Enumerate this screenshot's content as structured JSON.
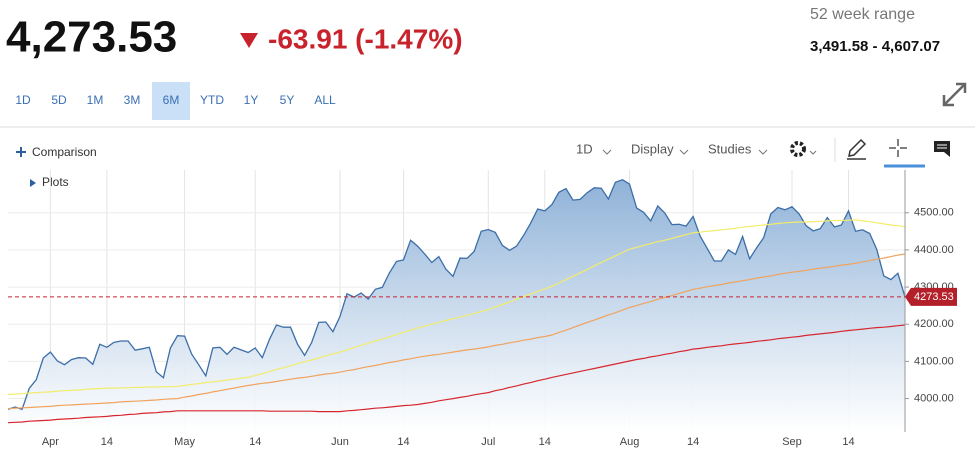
{
  "quote": {
    "last": "4,273.53",
    "change": "-63.91 (-1.47%)",
    "range_label": "52 week range",
    "range": "3,491.58 - 4,607.07"
  },
  "toolbar": {
    "ranges": [
      "1D",
      "5D",
      "1M",
      "3M",
      "6M",
      "YTD",
      "1Y",
      "5Y",
      "ALL"
    ],
    "selected_range_index": 4,
    "comparison": "Comparison",
    "interval": "1D",
    "display": "Display",
    "studies": "Studies",
    "plots": "Plots"
  },
  "chart_data": {
    "type": "line",
    "categories": [
      null,
      null,
      null,
      null,
      null,
      null,
      "Apr",
      null,
      null,
      null,
      null,
      null,
      null,
      null,
      "14",
      null,
      null,
      null,
      null,
      null,
      null,
      null,
      null,
      null,
      null,
      "May",
      null,
      null,
      null,
      null,
      null,
      null,
      null,
      null,
      null,
      "14",
      null,
      null,
      null,
      null,
      null,
      null,
      null,
      null,
      null,
      null,
      null,
      "Jun",
      null,
      null,
      null,
      null,
      null,
      null,
      null,
      null,
      "14",
      null,
      null,
      null,
      null,
      null,
      null,
      null,
      null,
      null,
      null,
      null,
      "Jul",
      null,
      null,
      null,
      null,
      null,
      null,
      null,
      "14",
      null,
      null,
      null,
      null,
      null,
      null,
      null,
      null,
      null,
      null,
      null,
      "Aug",
      null,
      null,
      null,
      null,
      null,
      null,
      null,
      null,
      "14",
      null,
      null,
      null,
      null,
      null,
      null,
      null,
      null,
      null,
      null,
      null,
      null,
      null,
      "Sep",
      null,
      null,
      null,
      null,
      null,
      null,
      null,
      "14",
      null,
      null,
      null,
      null,
      null,
      null,
      null,
      null
    ],
    "series": [
      {
        "color": "#3c6ea8",
        "area": true,
        "values": [
          3971,
          3977,
          3971,
          4027,
          4051,
          4109,
          4125,
          4101,
          4091,
          4105,
          4110,
          4109,
          4092,
          4146,
          4138,
          4151,
          4155,
          4155,
          4130,
          4134,
          4138,
          4072,
          4056,
          4136,
          4169,
          4168,
          4120,
          4091,
          4061,
          4136,
          4138,
          4119,
          4138,
          4131,
          4124,
          4136,
          4110,
          4158,
          4198,
          4192,
          4192,
          4146,
          4116,
          4151,
          4205,
          4206,
          4180,
          4221,
          4282,
          4273,
          4284,
          4268,
          4294,
          4299,
          4338,
          4369,
          4373,
          4426,
          4410,
          4389,
          4366,
          4382,
          4348,
          4329,
          4378,
          4377,
          4396,
          4450,
          4455,
          4447,
          4412,
          4399,
          4410,
          4439,
          4472,
          4510,
          4505,
          4522,
          4555,
          4565,
          4534,
          4536,
          4554,
          4567,
          4566,
          4537,
          4582,
          4589,
          4577,
          4513,
          4501,
          4478,
          4518,
          4499,
          4468,
          4469,
          4464,
          4490,
          4437,
          4404,
          4370,
          4370,
          4400,
          4388,
          4436,
          4376,
          4406,
          4433,
          4497,
          4514,
          4508,
          4516,
          4497,
          4465,
          4451,
          4457,
          4487,
          4462,
          4467,
          4505,
          4450,
          4454,
          4444,
          4402,
          4330,
          4320,
          4337,
          4273.53
        ]
      },
      {
        "color": "#f2ec6a",
        "values": [
          4011,
          4012,
          4013,
          4015,
          4016,
          4017,
          4018,
          4020,
          4021,
          4022,
          4023,
          4025,
          4026,
          4027,
          4028,
          4028,
          4029,
          4029,
          4030,
          4030,
          4031,
          4031,
          4032,
          4032,
          4033,
          4035,
          4038,
          4040,
          4043,
          4045,
          4047,
          4050,
          4052,
          4055,
          4057,
          4062,
          4067,
          4073,
          4078,
          4083,
          4088,
          4094,
          4099,
          4104,
          4109,
          4115,
          4120,
          4125,
          4131,
          4137,
          4143,
          4149,
          4155,
          4160,
          4166,
          4172,
          4178,
          4184,
          4190,
          4195,
          4200,
          4205,
          4210,
          4215,
          4219,
          4224,
          4229,
          4234,
          4239,
          4246,
          4253,
          4260,
          4267,
          4274,
          4281,
          4288,
          4295,
          4302,
          4311,
          4320,
          4329,
          4338,
          4347,
          4357,
          4366,
          4375,
          4384,
          4393,
          4402,
          4407,
          4412,
          4417,
          4422,
          4426,
          4431,
          4436,
          4441,
          4446,
          4448,
          4450,
          4452,
          4454,
          4456,
          4458,
          4461,
          4463,
          4465,
          4467,
          4469,
          4471,
          4473,
          4474,
          4475,
          4475,
          4476,
          4477,
          4478,
          4479,
          4479,
          4480,
          4481,
          4478,
          4476,
          4473,
          4470,
          4467,
          4465,
          4462
        ]
      },
      {
        "color": "#f0a35e",
        "values": [
          3973,
          3974,
          3975,
          3976,
          3977,
          3978,
          3979,
          3981,
          3982,
          3983,
          3984,
          3985,
          3986,
          3987,
          3988,
          3989,
          3991,
          3992,
          3993,
          3994,
          3995,
          3996,
          3998,
          3999,
          4000,
          4004,
          4007,
          4011,
          4014,
          4018,
          4021,
          4025,
          4028,
          4032,
          4035,
          4038,
          4041,
          4043,
          4046,
          4049,
          4052,
          4055,
          4057,
          4060,
          4063,
          4066,
          4068,
          4071,
          4075,
          4078,
          4082,
          4086,
          4089,
          4093,
          4097,
          4100,
          4104,
          4107,
          4111,
          4114,
          4117,
          4119,
          4122,
          4125,
          4128,
          4131,
          4133,
          4136,
          4139,
          4143,
          4146,
          4150,
          4153,
          4157,
          4160,
          4164,
          4167,
          4171,
          4178,
          4184,
          4191,
          4198,
          4205,
          4211,
          4218,
          4225,
          4231,
          4238,
          4245,
          4250,
          4256,
          4261,
          4267,
          4272,
          4277,
          4283,
          4288,
          4294,
          4297,
          4301,
          4304,
          4307,
          4311,
          4314,
          4317,
          4320,
          4324,
          4327,
          4330,
          4334,
          4337,
          4340,
          4342,
          4345,
          4348,
          4351,
          4353,
          4356,
          4359,
          4361,
          4364,
          4368,
          4371,
          4375,
          4378,
          4382,
          4386,
          4389
        ]
      },
      {
        "color": "#d7262e",
        "values": [
          3935,
          3936,
          3937,
          3939,
          3940,
          3941,
          3942,
          3944,
          3945,
          3946,
          3947,
          3949,
          3950,
          3951,
          3952,
          3954,
          3955,
          3957,
          3958,
          3960,
          3961,
          3962,
          3964,
          3965,
          3967,
          3967,
          3967,
          3967,
          3967,
          3967,
          3967,
          3967,
          3967,
          3967,
          3967,
          3967,
          3967,
          3966,
          3966,
          3966,
          3966,
          3966,
          3966,
          3966,
          3965,
          3965,
          3965,
          3965,
          3967,
          3968,
          3970,
          3972,
          3974,
          3975,
          3977,
          3979,
          3981,
          3982,
          3984,
          3987,
          3990,
          3994,
          3997,
          4000,
          4003,
          4006,
          4010,
          4013,
          4016,
          4021,
          4025,
          4030,
          4034,
          4039,
          4043,
          4048,
          4052,
          4057,
          4061,
          4065,
          4069,
          4073,
          4077,
          4081,
          4085,
          4089,
          4093,
          4097,
          4101,
          4105,
          4108,
          4112,
          4115,
          4119,
          4122,
          4126,
          4129,
          4133,
          4135,
          4138,
          4140,
          4142,
          4145,
          4147,
          4149,
          4151,
          4154,
          4156,
          4158,
          4161,
          4163,
          4165,
          4167,
          4170,
          4172,
          4174,
          4176,
          4178,
          4181,
          4183,
          4185,
          4187,
          4189,
          4191,
          4192,
          4194,
          4196,
          4198
        ]
      }
    ],
    "ylim": [
      3910,
      4615
    ],
    "yticks": [
      {
        "value": 4000,
        "label": "4000.00"
      },
      {
        "value": 4100,
        "label": "4100.00"
      },
      {
        "value": 4200,
        "label": "4200.00"
      },
      {
        "value": 4300,
        "label": "4300.00"
      },
      {
        "value": 4400,
        "label": "4400.00"
      },
      {
        "value": 4500,
        "label": "4500.00"
      }
    ],
    "grid": true,
    "last_price_line": true
  }
}
